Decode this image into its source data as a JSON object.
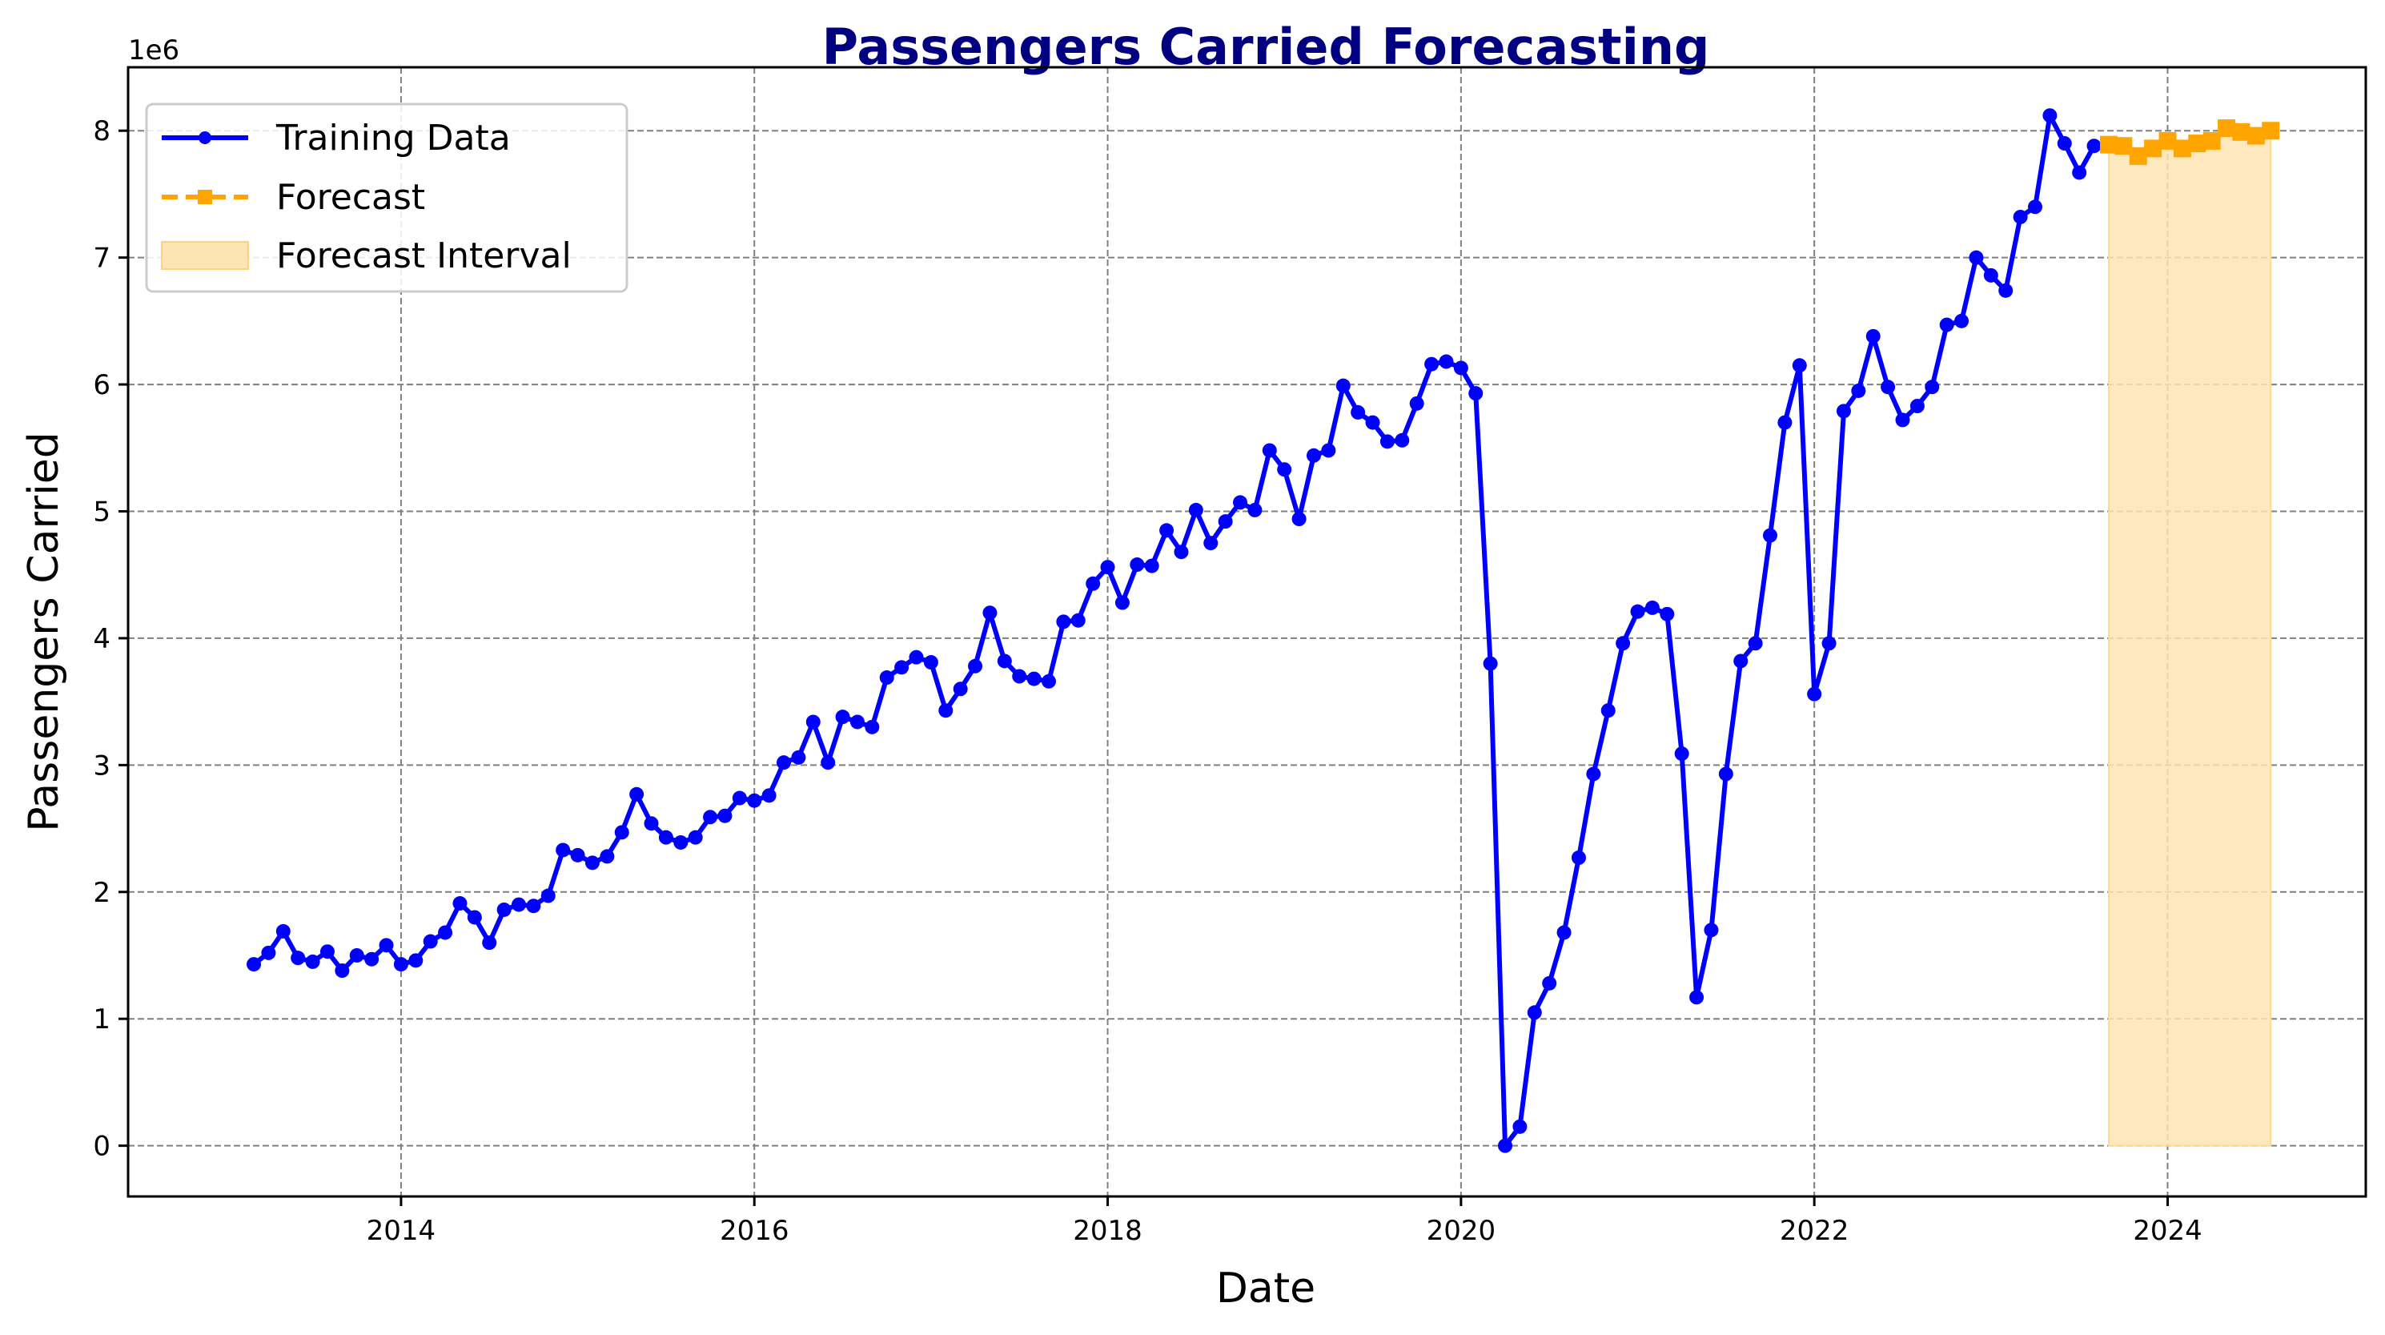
{
  "chart_data": {
    "type": "line",
    "title": "Passengers Carried Forecasting",
    "xlabel": "Date",
    "ylabel": "Passengers Carried",
    "y_offset_label": "1e6",
    "x_ticks": [
      "2014",
      "2016",
      "2018",
      "2020",
      "2022",
      "2024"
    ],
    "y_ticks": [
      "0",
      "1",
      "2",
      "3",
      "4",
      "5",
      "6",
      "7",
      "8"
    ],
    "xlim": [
      "2012-06-15",
      "2025-02-15"
    ],
    "ylim": [
      -400000,
      8500000
    ],
    "grid": true,
    "legend_position": "upper-left",
    "colors": {
      "training": "#0000ff",
      "forecast": "#ffa500",
      "interval": "#ffe4b3",
      "title": "#000080"
    },
    "legend": [
      "Training Data",
      "Forecast",
      "Forecast Interval"
    ],
    "series": [
      {
        "name": "Training Data",
        "style": "solid line with circle markers",
        "x": [
          "2013-03-01",
          "2013-04-01",
          "2013-05-01",
          "2013-06-01",
          "2013-07-01",
          "2013-08-01",
          "2013-09-01",
          "2013-10-01",
          "2013-11-01",
          "2013-12-01",
          "2014-01-01",
          "2014-02-01",
          "2014-03-01",
          "2014-04-01",
          "2014-05-01",
          "2014-06-01",
          "2014-07-01",
          "2014-08-01",
          "2014-09-01",
          "2014-10-01",
          "2014-11-01",
          "2014-12-01",
          "2015-01-01",
          "2015-02-01",
          "2015-03-01",
          "2015-04-01",
          "2015-05-01",
          "2015-06-01",
          "2015-07-01",
          "2015-08-01",
          "2015-09-01",
          "2015-10-01",
          "2015-11-01",
          "2015-12-01",
          "2016-01-01",
          "2016-02-01",
          "2016-03-01",
          "2016-04-01",
          "2016-05-01",
          "2016-06-01",
          "2016-07-01",
          "2016-08-01",
          "2016-09-01",
          "2016-10-01",
          "2016-11-01",
          "2016-12-01",
          "2017-01-01",
          "2017-02-01",
          "2017-03-01",
          "2017-04-01",
          "2017-05-01",
          "2017-06-01",
          "2017-07-01",
          "2017-08-01",
          "2017-09-01",
          "2017-10-01",
          "2017-11-01",
          "2017-12-01",
          "2018-01-01",
          "2018-02-01",
          "2018-03-01",
          "2018-04-01",
          "2018-05-01",
          "2018-06-01",
          "2018-07-01",
          "2018-08-01",
          "2018-09-01",
          "2018-10-01",
          "2018-11-01",
          "2018-12-01",
          "2019-01-01",
          "2019-02-01",
          "2019-03-01",
          "2019-04-01",
          "2019-05-01",
          "2019-06-01",
          "2019-07-01",
          "2019-08-01",
          "2019-09-01",
          "2019-10-01",
          "2019-11-01",
          "2019-12-01",
          "2020-01-01",
          "2020-02-01",
          "2020-03-01",
          "2020-04-01",
          "2020-05-01",
          "2020-06-01",
          "2020-07-01",
          "2020-08-01",
          "2020-09-01",
          "2020-10-01",
          "2020-11-01",
          "2020-12-01",
          "2021-01-01",
          "2021-02-01",
          "2021-03-01",
          "2021-04-01",
          "2021-05-01",
          "2021-06-01",
          "2021-07-01",
          "2021-08-01",
          "2021-09-01",
          "2021-10-01",
          "2021-11-01",
          "2021-12-01",
          "2022-01-01",
          "2022-02-01",
          "2022-03-01",
          "2022-04-01",
          "2022-05-01",
          "2022-06-01",
          "2022-07-01",
          "2022-08-01",
          "2022-09-01",
          "2022-10-01",
          "2022-11-01",
          "2022-12-01",
          "2023-01-01",
          "2023-02-01",
          "2023-03-01",
          "2023-04-01",
          "2023-05-01",
          "2023-06-01",
          "2023-07-01",
          "2023-08-01"
        ],
        "y": [
          1430000,
          1520000,
          1690000,
          1480000,
          1450000,
          1530000,
          1380000,
          1500000,
          1470000,
          1580000,
          1430000,
          1460000,
          1610000,
          1680000,
          1910000,
          1800000,
          1600000,
          1860000,
          1900000,
          1890000,
          1970000,
          2330000,
          2290000,
          2230000,
          2280000,
          2470000,
          2770000,
          2540000,
          2430000,
          2390000,
          2430000,
          2590000,
          2600000,
          2740000,
          2720000,
          2760000,
          3020000,
          3060000,
          3340000,
          3020000,
          3380000,
          3340000,
          3300000,
          3690000,
          3770000,
          3850000,
          3810000,
          3430000,
          3600000,
          3780000,
          4200000,
          3820000,
          3700000,
          3680000,
          3660000,
          4130000,
          4140000,
          4430000,
          4560000,
          4280000,
          4580000,
          4570000,
          4850000,
          4680000,
          5010000,
          4750000,
          4920000,
          5070000,
          5010000,
          5480000,
          5330000,
          4940000,
          5440000,
          5480000,
          5990000,
          5780000,
          5700000,
          5550000,
          5560000,
          5850000,
          6160000,
          6180000,
          6130000,
          5930000,
          3800000,
          0,
          150000,
          1050000,
          1280000,
          1680000,
          2270000,
          2930000,
          3430000,
          3960000,
          4210000,
          4240000,
          4190000,
          3090000,
          1170000,
          1700000,
          2930000,
          3820000,
          3960000,
          4810000,
          5700000,
          6150000,
          3560000,
          3960000,
          5790000,
          5950000,
          6380000,
          5980000,
          5720000,
          5830000,
          5980000,
          6470000,
          6500000,
          7000000,
          6860000,
          6740000,
          7320000,
          7400000,
          8120000,
          7900000,
          7670000,
          7880000
        ]
      },
      {
        "name": "Forecast",
        "style": "dashed line with square markers",
        "x": [
          "2023-09-01",
          "2023-10-01",
          "2023-11-01",
          "2023-12-01",
          "2024-01-01",
          "2024-02-01",
          "2024-03-01",
          "2024-04-01",
          "2024-05-01",
          "2024-06-01",
          "2024-07-01",
          "2024-08-01"
        ],
        "y": [
          7890000,
          7880000,
          7800000,
          7860000,
          7920000,
          7860000,
          7900000,
          7920000,
          8020000,
          7990000,
          7960000,
          8000000
        ]
      },
      {
        "name": "Forecast Interval",
        "style": "shaded band",
        "x_range": [
          "2023-09-01",
          "2024-08-01"
        ],
        "lower": 0,
        "upper": [
          7890000,
          7880000,
          7800000,
          7860000,
          7920000,
          7860000,
          7900000,
          7920000,
          8020000,
          7990000,
          7960000,
          8000000
        ]
      }
    ]
  }
}
